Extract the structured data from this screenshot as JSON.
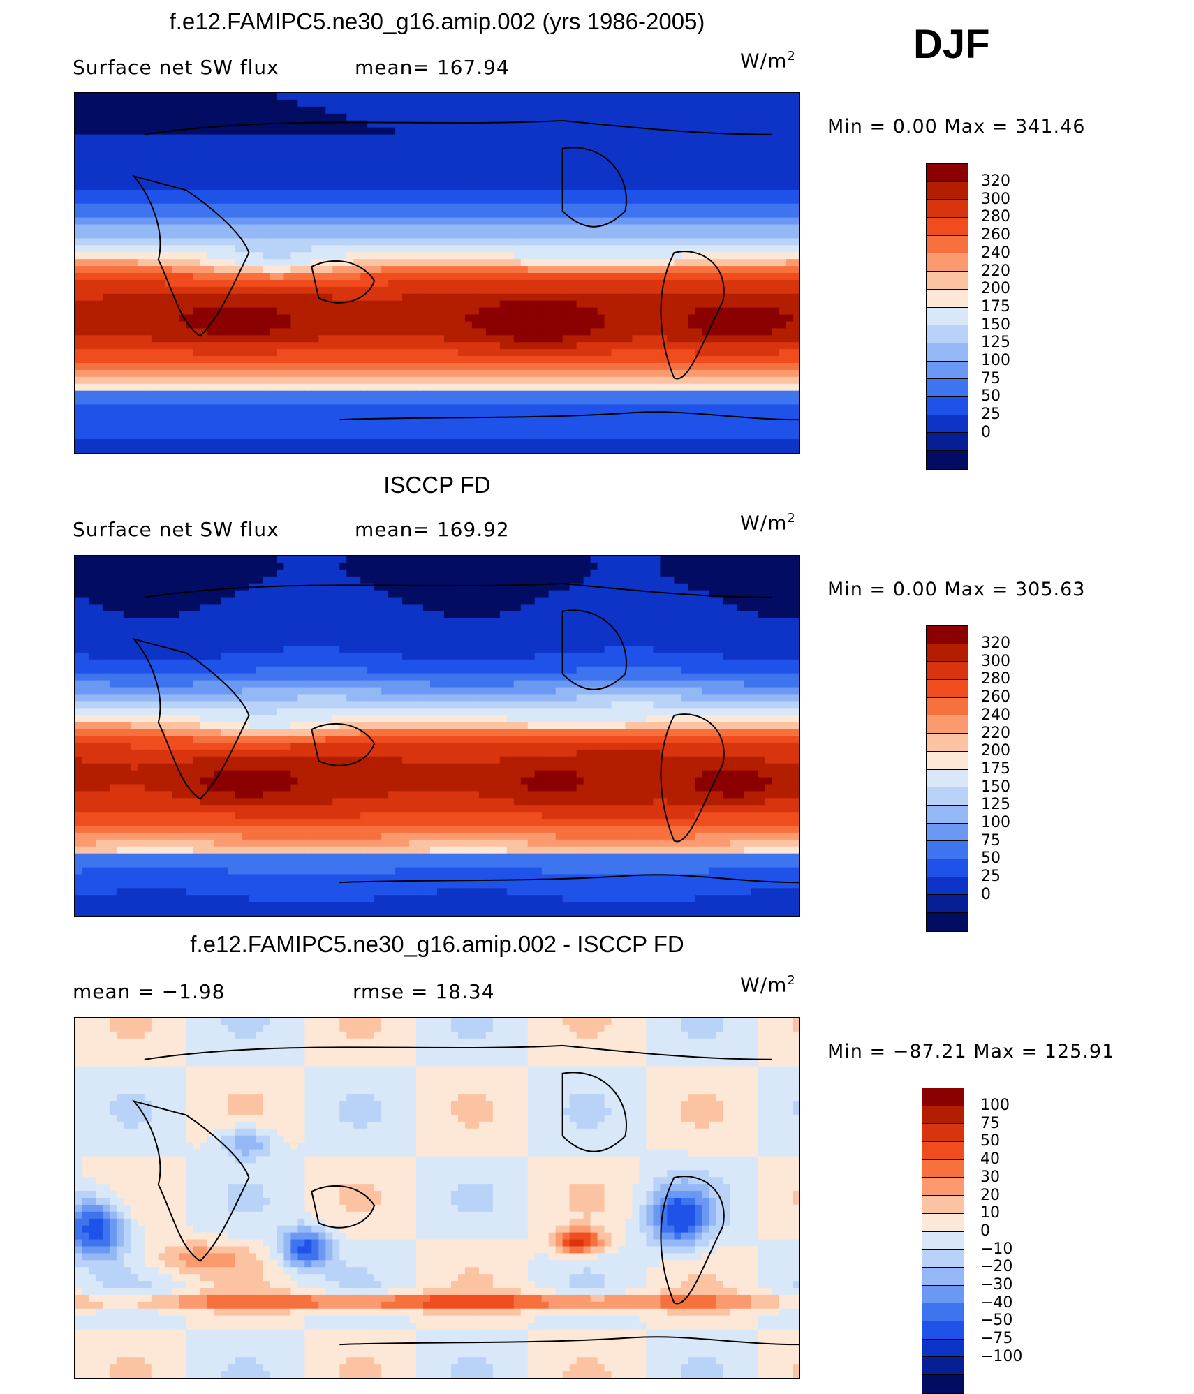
{
  "season": "DJF",
  "panels": [
    {
      "title": "f.e12.FAMIPC5.ne30_g16.amip.002 (yrs 1986-2005)",
      "left_label": "Surface net SW flux",
      "stat_label": "mean= 167.94",
      "units": "W/m",
      "units_sup": "2",
      "minmax": "Min =    0.00 Max = 341.46",
      "colorbar": {
        "colors": [
          "#8b0000",
          "#b31d00",
          "#d8350e",
          "#f04c1e",
          "#f7713f",
          "#fb9a6f",
          "#fcc3a2",
          "#fde8d8",
          "#d8e8f8",
          "#b8d2f8",
          "#94b8f5",
          "#6b98f2",
          "#3f74ef",
          "#1f52e8",
          "#0d34c6",
          "#061f94",
          "#020c62"
        ],
        "ticks": [
          "320",
          "300",
          "280",
          "260",
          "240",
          "220",
          "200",
          "175",
          "150",
          "125",
          "100",
          "75",
          "50",
          "25",
          "0"
        ]
      },
      "field": "model"
    },
    {
      "title": "ISCCP FD",
      "left_label": "Surface net SW flux",
      "stat_label": "mean= 169.92",
      "units": "W/m",
      "units_sup": "2",
      "minmax": "Min =    0.00 Max = 305.63",
      "colorbar": {
        "colors": [
          "#8b0000",
          "#b31d00",
          "#d8350e",
          "#f04c1e",
          "#f7713f",
          "#fb9a6f",
          "#fcc3a2",
          "#fde8d8",
          "#d8e8f8",
          "#b8d2f8",
          "#94b8f5",
          "#6b98f2",
          "#3f74ef",
          "#1f52e8",
          "#0d34c6",
          "#061f94",
          "#020c62"
        ],
        "ticks": [
          "320",
          "300",
          "280",
          "260",
          "240",
          "220",
          "200",
          "175",
          "150",
          "125",
          "100",
          "75",
          "50",
          "25",
          "0"
        ]
      },
      "field": "obs"
    },
    {
      "title": "f.e12.FAMIPC5.ne30_g16.amip.002 - ISCCP FD",
      "left_label": "mean =   −1.98",
      "stat_label": "rmse =   18.34",
      "units": "W/m",
      "units_sup": "2",
      "minmax": "Min = −87.21 Max = 125.91",
      "colorbar": {
        "colors": [
          "#8b0000",
          "#b31d00",
          "#d8350e",
          "#f04c1e",
          "#f7713f",
          "#fb9a6f",
          "#fcc3a2",
          "#fde8d8",
          "#d8e8f8",
          "#b8d2f8",
          "#94b8f5",
          "#6b98f2",
          "#3f74ef",
          "#1f52e8",
          "#0d34c6",
          "#061f94",
          "#020c62"
        ],
        "ticks": [
          "100",
          "75",
          "50",
          "40",
          "30",
          "20",
          "10",
          "0",
          "−10",
          "−20",
          "−30",
          "−40",
          "−50",
          "−75",
          "−100"
        ]
      },
      "field": "diff"
    }
  ]
}
